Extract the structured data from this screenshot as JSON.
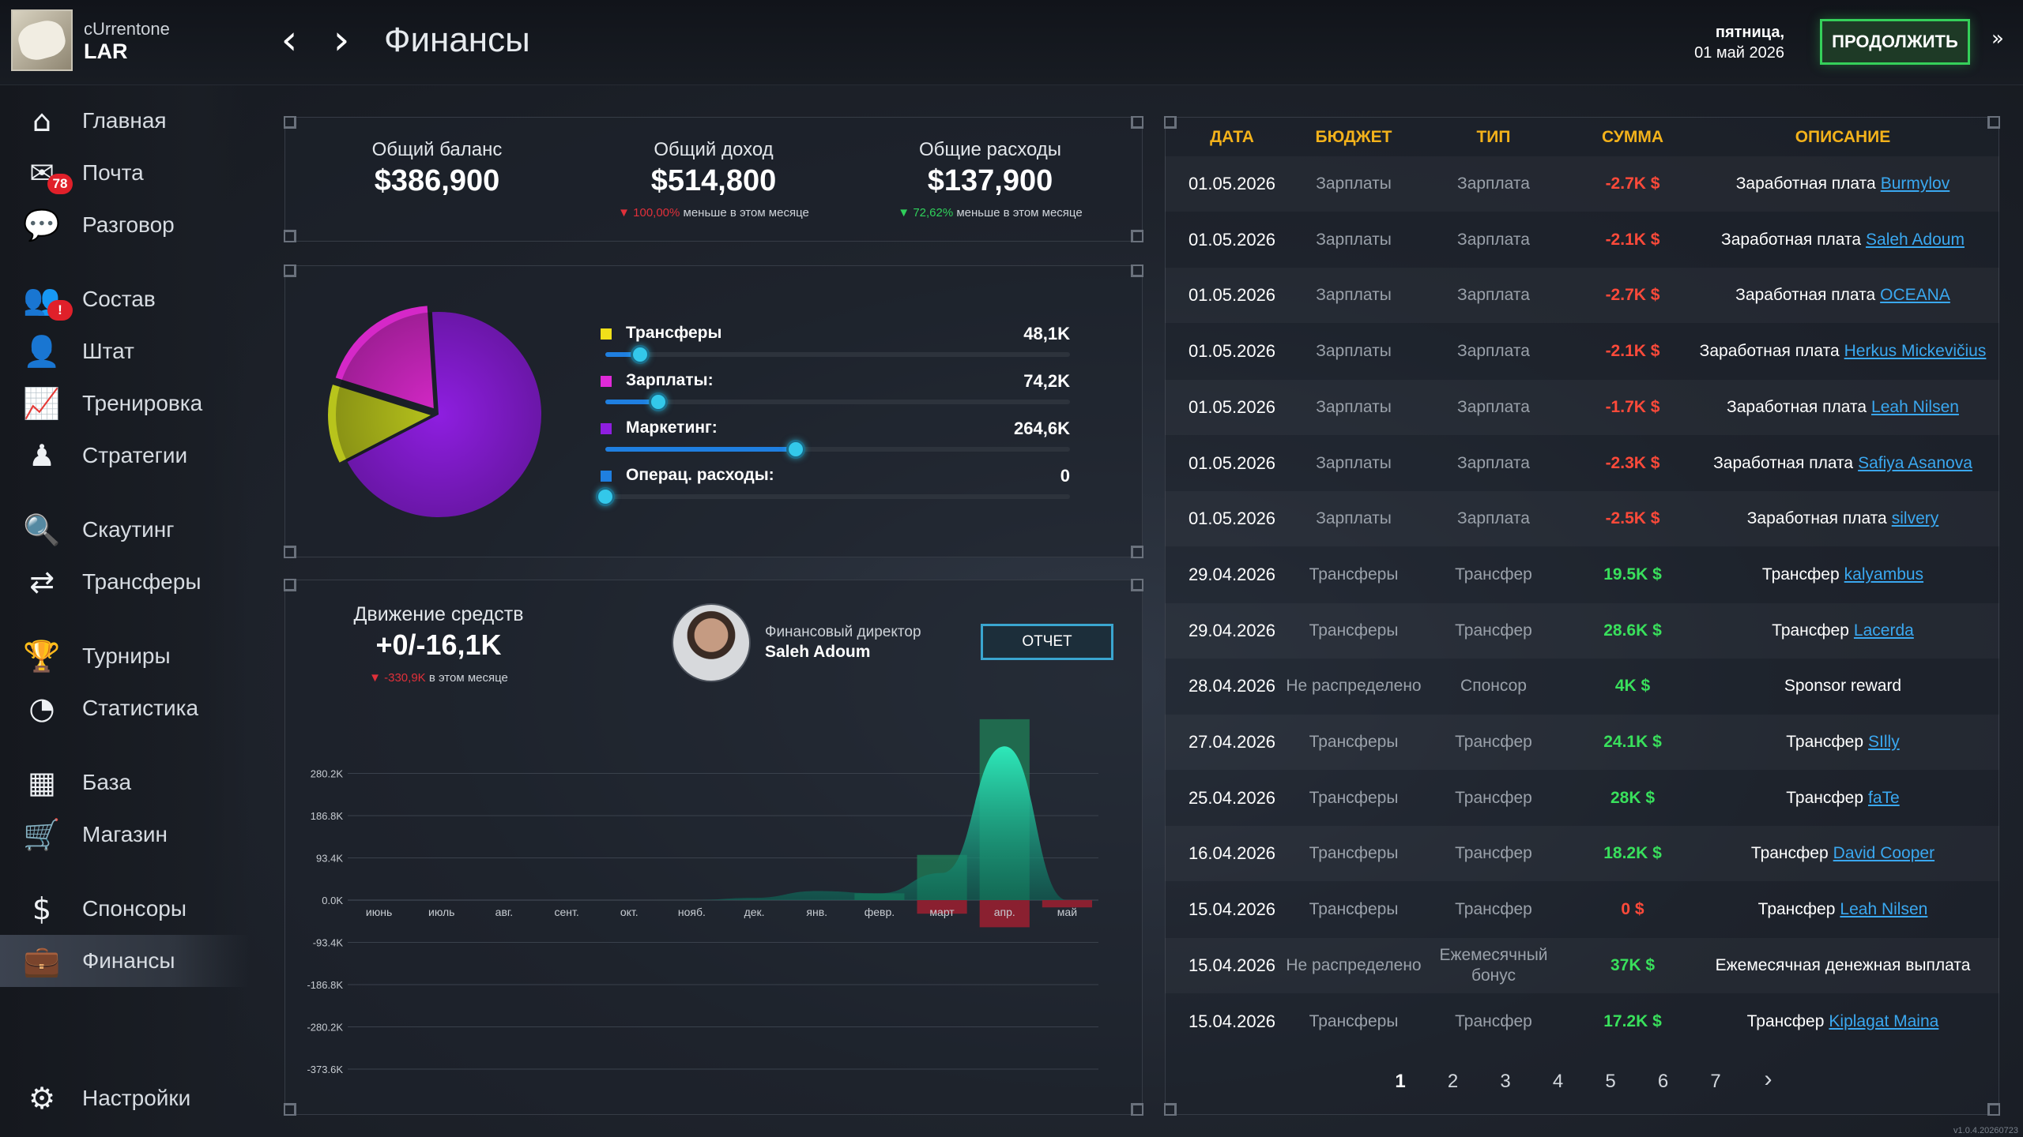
{
  "header": {
    "club_sub": "cUrrentone",
    "club_name": "LAR",
    "title": "Финансы",
    "date_line1": "пятница,",
    "date_line2": "01 май 2026",
    "continue_label": "ПРОДОЛЖИТЬ"
  },
  "sidebar": [
    {
      "label": "Главная",
      "icon": "home-icon"
    },
    {
      "label": "Почта",
      "icon": "mail-icon",
      "badge": "78"
    },
    {
      "label": "Разговор",
      "icon": "chat-icon"
    },
    {
      "label": "Состав",
      "icon": "squad-icon",
      "badge": "!"
    },
    {
      "label": "Штат",
      "icon": "staff-icon"
    },
    {
      "label": "Тренировка",
      "icon": "training-icon"
    },
    {
      "label": "Стратегии",
      "icon": "strategy-icon"
    },
    {
      "label": "Скаутинг",
      "icon": "scouting-icon"
    },
    {
      "label": "Трансферы",
      "icon": "transfers-icon"
    },
    {
      "label": "Турниры",
      "icon": "trophy-icon"
    },
    {
      "label": "Статистика",
      "icon": "stats-icon"
    },
    {
      "label": "База",
      "icon": "base-icon"
    },
    {
      "label": "Магазин",
      "icon": "cart-icon"
    },
    {
      "label": "Спонсоры",
      "icon": "sponsor-icon"
    },
    {
      "label": "Финансы",
      "icon": "briefcase-icon",
      "active": true
    },
    {
      "label": "Настройки",
      "icon": "gear-icon"
    }
  ],
  "kpis": [
    {
      "label": "Общий баланс",
      "value": "$386,900",
      "note_pct": "",
      "note_text": ""
    },
    {
      "label": "Общий доход",
      "value": "$514,800",
      "note_pct": "100,00%",
      "note_text": " меньше в этом месяце"
    },
    {
      "label": "Общие расходы",
      "value": "$137,900",
      "note_pct": "72,62%",
      "note_text": " меньше в этом месяце"
    }
  ],
  "breakdown": [
    {
      "label": "Трансферы",
      "value": "48,1K",
      "color": "#f0e01a",
      "level": 0.074
    },
    {
      "label": "Зарплаты:",
      "value": "74,2K",
      "color": "#e02ad8",
      "level": 0.114
    },
    {
      "label": "Маркетинг:",
      "value": "264,6K",
      "color": "#8e1ee0",
      "level": 0.41
    },
    {
      "label": "Операц. расходы:",
      "value": "0",
      "color": "#1f7fe0",
      "level": 0
    }
  ],
  "pie_colors": {
    "marketing": "#8e1ee0",
    "salaries": "#d528c8",
    "transfers": "#b8c41c"
  },
  "cashflow": {
    "title": "Движение средств",
    "value": "+0/-16,1K",
    "note_pct": "-330,9K",
    "note_text": " в этом месяце"
  },
  "director": {
    "role": "Финансовый директор",
    "name": "Saleh Adoum",
    "report_label": "ОТЧЕТ"
  },
  "chart_data": {
    "type": "bar",
    "categories": [
      "июнь",
      "июль",
      "авг.",
      "сент.",
      "окт.",
      "нояб.",
      "дек.",
      "янв.",
      "февр.",
      "март",
      "апр.",
      "май"
    ],
    "income": [
      0,
      0,
      0,
      0,
      0,
      0,
      0,
      0,
      15000,
      100000,
      400000,
      0
    ],
    "expense": [
      0,
      0,
      0,
      0,
      0,
      0,
      0,
      0,
      0,
      -30000,
      -60000,
      -16100
    ],
    "net_line": [
      0,
      0,
      0,
      0,
      0,
      0,
      5000,
      20000,
      15000,
      60000,
      340000,
      0
    ],
    "yticks": [
      "280.2K",
      "186.8K",
      "93.4K",
      "0.0K",
      "-93.4K",
      "-186.8K",
      "-280.2K",
      "-373.6K"
    ],
    "ylim": [
      -373600,
      373600
    ]
  },
  "table": {
    "headers": [
      "ДАТА",
      "БЮДЖЕТ",
      "ТИП",
      "СУММА",
      "ОПИСАНИЕ"
    ],
    "rows": [
      {
        "date": "01.05.2026",
        "budget": "Зарплаты",
        "type": "Зарплата",
        "amount": "-2.7K $",
        "sign": "neg",
        "desc": "Заработная плата",
        "link": "Burmylov"
      },
      {
        "date": "01.05.2026",
        "budget": "Зарплаты",
        "type": "Зарплата",
        "amount": "-2.1K $",
        "sign": "neg",
        "desc": "Заработная плата",
        "link": "Saleh Adoum"
      },
      {
        "date": "01.05.2026",
        "budget": "Зарплаты",
        "type": "Зарплата",
        "amount": "-2.7K $",
        "sign": "neg",
        "desc": "Заработная плата",
        "link": "OCEANA"
      },
      {
        "date": "01.05.2026",
        "budget": "Зарплаты",
        "type": "Зарплата",
        "amount": "-2.1K $",
        "sign": "neg",
        "desc": "Заработная плата",
        "link": "Herkus Mickevičius"
      },
      {
        "date": "01.05.2026",
        "budget": "Зарплаты",
        "type": "Зарплата",
        "amount": "-1.7K $",
        "sign": "neg",
        "desc": "Заработная плата",
        "link": "Leah Nilsen"
      },
      {
        "date": "01.05.2026",
        "budget": "Зарплаты",
        "type": "Зарплата",
        "amount": "-2.3K $",
        "sign": "neg",
        "desc": "Заработная плата",
        "link": "Safiya Asanova"
      },
      {
        "date": "01.05.2026",
        "budget": "Зарплаты",
        "type": "Зарплата",
        "amount": "-2.5K $",
        "sign": "neg",
        "desc": "Заработная плата",
        "link": "silvery"
      },
      {
        "date": "29.04.2026",
        "budget": "Трансферы",
        "type": "Трансфер",
        "amount": "19.5K $",
        "sign": "pos",
        "desc": "Трансфер",
        "link": "kalyambus"
      },
      {
        "date": "29.04.2026",
        "budget": "Трансферы",
        "type": "Трансфер",
        "amount": "28.6K $",
        "sign": "pos",
        "desc": "Трансфер",
        "link": "Lacerda"
      },
      {
        "date": "28.04.2026",
        "budget": "Не распределено",
        "type": "Спонсор",
        "amount": "4K $",
        "sign": "pos",
        "desc": "Sponsor reward",
        "link": ""
      },
      {
        "date": "27.04.2026",
        "budget": "Трансферы",
        "type": "Трансфер",
        "amount": "24.1K $",
        "sign": "pos",
        "desc": "Трансфер",
        "link": "SIlly"
      },
      {
        "date": "25.04.2026",
        "budget": "Трансферы",
        "type": "Трансфер",
        "amount": "28K $",
        "sign": "pos",
        "desc": "Трансфер",
        "link": "faTe"
      },
      {
        "date": "16.04.2026",
        "budget": "Трансферы",
        "type": "Трансфер",
        "amount": "18.2K $",
        "sign": "pos",
        "desc": "Трансфер",
        "link": "David Cooper"
      },
      {
        "date": "15.04.2026",
        "budget": "Трансферы",
        "type": "Трансфер",
        "amount": "0 $",
        "sign": "zero",
        "desc": "Трансфер",
        "link": "Leah Nilsen"
      },
      {
        "date": "15.04.2026",
        "budget": "Не распределено",
        "type": "Ежемесячный бонус",
        "amount": "37K $",
        "sign": "pos",
        "desc": "Ежемесячная денежная выплата",
        "link": ""
      },
      {
        "date": "15.04.2026",
        "budget": "Трансферы",
        "type": "Трансфер",
        "amount": "17.2K $",
        "sign": "pos",
        "desc": "Трансфер",
        "link": "Kiplagat Maina"
      }
    ]
  },
  "pagination": {
    "pages": [
      "1",
      "2",
      "3",
      "4",
      "5",
      "6",
      "7"
    ],
    "active": "1",
    "next": "›"
  },
  "version": "v1.0.4.20260723"
}
